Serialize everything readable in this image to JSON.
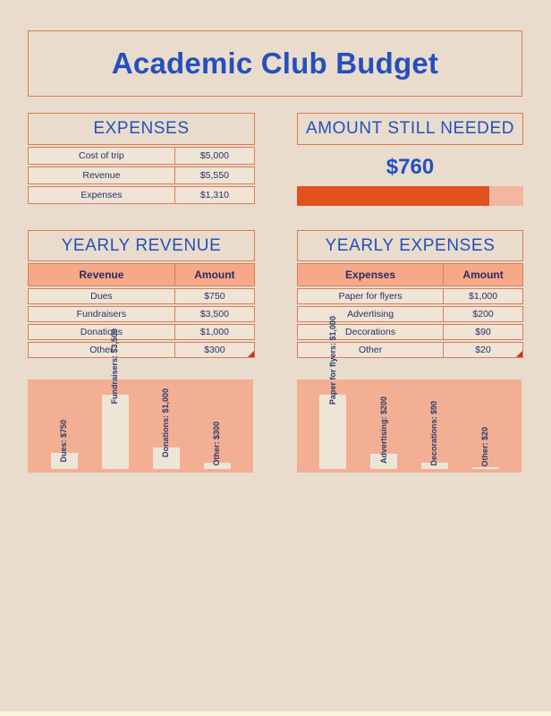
{
  "colors": {
    "background": "#E9DCCD",
    "border_orange": "#DF7A52",
    "title_blue": "#2450BE",
    "text_navy": "#28306A",
    "table_header_salmon": "#F5A988",
    "chart_panel_salmon": "#F2AF94",
    "chart_bar_cream": "#EFE5D6",
    "progress_fill": "#E0511F",
    "progress_track": "#F2B7A1"
  },
  "title": "Academic Club Budget",
  "expenses_summary": {
    "title": "EXPENSES",
    "rows": [
      {
        "label": "Cost of trip",
        "value": "$5,000"
      },
      {
        "label": "Revenue",
        "value": "$5,550"
      },
      {
        "label": "Expenses",
        "value": "$1,310"
      }
    ]
  },
  "amount_still_needed": {
    "title": "AMOUNT STILL NEEDED",
    "amount": "$760",
    "progress_percent": 85
  },
  "yearly_revenue": {
    "title": "YEARLY REVENUE",
    "columns": [
      "Revenue",
      "Amount"
    ],
    "rows": [
      [
        "Dues",
        "$750"
      ],
      [
        "Fundraisers",
        "$3,500"
      ],
      [
        "Donations",
        "$1,000"
      ],
      [
        "Other",
        "$300"
      ]
    ]
  },
  "yearly_expenses": {
    "title": "YEARLY EXPENSES",
    "columns": [
      "Expenses",
      "Amount"
    ],
    "rows": [
      [
        "Paper for flyers",
        "$1,000"
      ],
      [
        "Advertising",
        "$200"
      ],
      [
        "Decorations",
        "$90"
      ],
      [
        "Other",
        "$20"
      ]
    ]
  },
  "chart_data": [
    {
      "type": "bar",
      "title": "",
      "categories": [
        "Dues",
        "Fundraisers",
        "Donations",
        "Other"
      ],
      "values": [
        750,
        3500,
        1000,
        300
      ],
      "labels": [
        "Dues: $750",
        "Fundraisers: $3,500",
        "Donations: $1,000",
        "Other: $300"
      ],
      "ylim": [
        0,
        3500
      ],
      "orientation": "vertical",
      "data_label_rotation": 90,
      "grid": false,
      "legend": false
    },
    {
      "type": "bar",
      "title": "",
      "categories": [
        "Paper for flyers",
        "Advertising",
        "Decorations",
        "Other"
      ],
      "values": [
        1000,
        200,
        90,
        20
      ],
      "labels": [
        "Paper for flyers: $1,000",
        "Advertising: $200",
        "Decorations: $90",
        "Other: $20"
      ],
      "ylim": [
        0,
        1000
      ],
      "orientation": "vertical",
      "data_label_rotation": 90,
      "grid": false,
      "legend": false
    }
  ]
}
